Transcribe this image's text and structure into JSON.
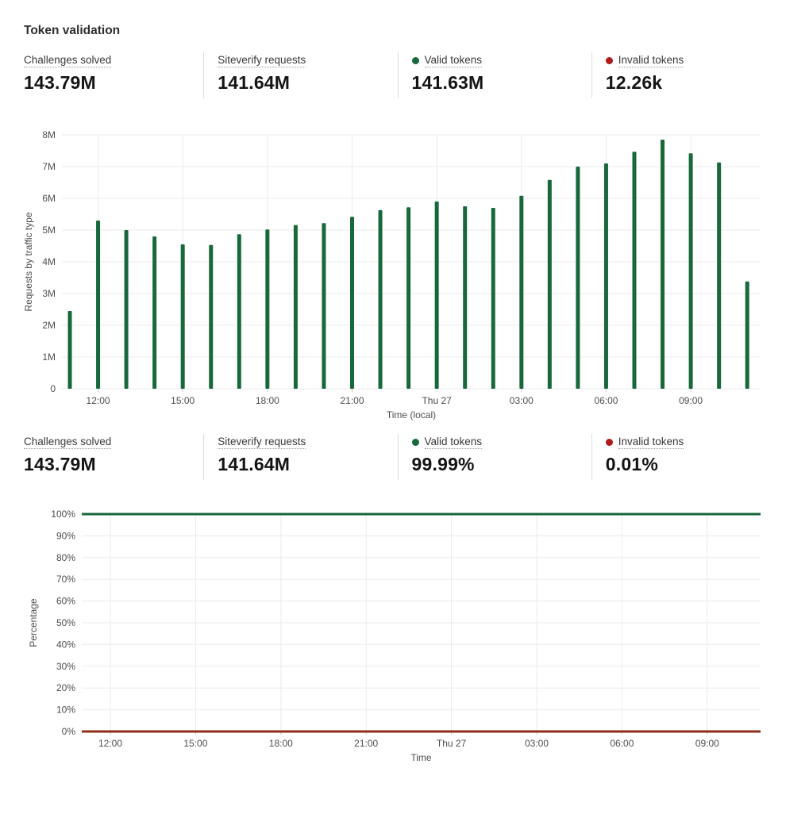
{
  "title": "Token validation",
  "colors": {
    "green": "#17683a",
    "red_dot": "#b11a1a",
    "line_red": "#8e2c15",
    "grid": "#ebebeb",
    "tick": "#c9c9c9",
    "axis_text": "#4d4d4d"
  },
  "stats_top": [
    {
      "label": "Challenges solved",
      "value": "143.79M"
    },
    {
      "label": "Siteverify requests",
      "value": "141.64M"
    },
    {
      "label": "Valid tokens",
      "value": "141.63M",
      "dot": "green"
    },
    {
      "label": "Invalid tokens",
      "value": "12.26k",
      "dot": "red"
    }
  ],
  "stats_bottom": [
    {
      "label": "Challenges solved",
      "value": "143.79M"
    },
    {
      "label": "Siteverify requests",
      "value": "141.64M"
    },
    {
      "label": "Valid tokens",
      "value": "99.99%",
      "dot": "green"
    },
    {
      "label": "Invalid tokens",
      "value": "0.01%",
      "dot": "red"
    }
  ],
  "chart_data": [
    {
      "type": "bar",
      "title": "",
      "ylabel": "Requests by traffic type",
      "xlabel": "Time (local)",
      "unit": "M",
      "ylim": [
        0,
        8
      ],
      "yticks": [
        "0",
        "1M",
        "2M",
        "3M",
        "4M",
        "5M",
        "6M",
        "7M",
        "8M"
      ],
      "categories": [
        "11:00",
        "12:00",
        "13:00",
        "14:00",
        "15:00",
        "16:00",
        "17:00",
        "18:00",
        "19:00",
        "20:00",
        "21:00",
        "22:00",
        "23:00",
        "Thu 27 00:00",
        "01:00",
        "02:00",
        "03:00",
        "04:00",
        "05:00",
        "06:00",
        "07:00",
        "08:00",
        "09:00",
        "10:00",
        "11:00"
      ],
      "values": [
        2.45,
        5.3,
        5.0,
        4.8,
        4.55,
        4.53,
        4.87,
        5.02,
        5.16,
        5.22,
        5.42,
        5.63,
        5.72,
        5.9,
        5.75,
        5.7,
        6.08,
        6.58,
        7.0,
        7.1,
        7.47,
        7.85,
        7.42,
        7.13,
        3.38
      ],
      "xticks": [
        {
          "index": 1,
          "label": "12:00"
        },
        {
          "index": 4,
          "label": "15:00"
        },
        {
          "index": 7,
          "label": "18:00"
        },
        {
          "index": 10,
          "label": "21:00"
        },
        {
          "index": 13,
          "label": "Thu 27"
        },
        {
          "index": 16,
          "label": "03:00"
        },
        {
          "index": 19,
          "label": "06:00"
        },
        {
          "index": 22,
          "label": "09:00"
        }
      ],
      "series_name": "Valid tokens",
      "bar_color_key": "green",
      "grid": true,
      "legend": "none"
    },
    {
      "type": "line",
      "title": "",
      "ylabel": "Percentage",
      "xlabel": "Time",
      "ylim": [
        0,
        100
      ],
      "yticks": [
        "0%",
        "10%",
        "20%",
        "30%",
        "40%",
        "50%",
        "60%",
        "70%",
        "80%",
        "90%",
        "100%"
      ],
      "xticks": [
        "12:00",
        "15:00",
        "18:00",
        "21:00",
        "Thu 27",
        "03:00",
        "06:00",
        "09:00"
      ],
      "series": [
        {
          "name": "Valid tokens",
          "constant_value": 100,
          "color_key": "green"
        },
        {
          "name": "Invalid tokens",
          "constant_value": 0,
          "color_key": "line_red"
        }
      ],
      "grid": true,
      "legend": "none"
    }
  ]
}
